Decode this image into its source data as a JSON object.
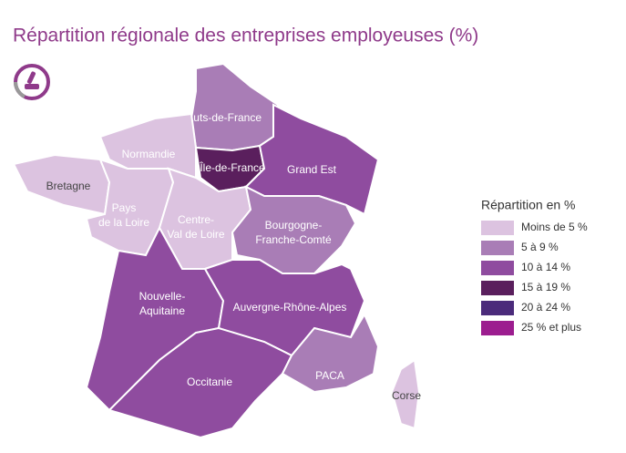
{
  "title": "Répartition régionale des entreprises employeuses (%)",
  "legend": {
    "title": "Répartition en %",
    "items": [
      {
        "label": "Moins de 5 %",
        "color": "#dcc3e0"
      },
      {
        "label": "5 à 9 %",
        "color": "#a97db6"
      },
      {
        "label": "10 à 14 %",
        "color": "#8f4c9f"
      },
      {
        "label": "15 à 19 %",
        "color": "#5a1f5d"
      },
      {
        "label": "20 à 24 %",
        "color": "#4b2b7b"
      },
      {
        "label": "25 % et plus",
        "color": "#9c1d8f"
      }
    ]
  },
  "regions": [
    {
      "label": "Hauts-de-France",
      "color": "#a97db6"
    },
    {
      "label": "Normandie",
      "color": "#dcc3e0"
    },
    {
      "label": "Bretagne",
      "color": "#dcc3e0"
    },
    {
      "label": "Île-de-France",
      "color": "#5a1f5d"
    },
    {
      "label": "Grand Est",
      "color": "#8f4c9f"
    },
    {
      "label": "Pays\nde la Loire",
      "color": "#dcc3e0"
    },
    {
      "label": "Centre-\nVal de Loire",
      "color": "#dcc3e0"
    },
    {
      "label": "Bourgogne-\nFranche-Comté",
      "color": "#a97db6"
    },
    {
      "label": "Nouvelle-\nAquitaine",
      "color": "#8f4c9f"
    },
    {
      "label": "Auvergne-Rhône-Alpes",
      "color": "#8f4c9f"
    },
    {
      "label": "Occitanie",
      "color": "#8f4c9f"
    },
    {
      "label": "PACA",
      "color": "#a97db6"
    },
    {
      "label": "Corse",
      "color": "#dcc3e0"
    }
  ]
}
